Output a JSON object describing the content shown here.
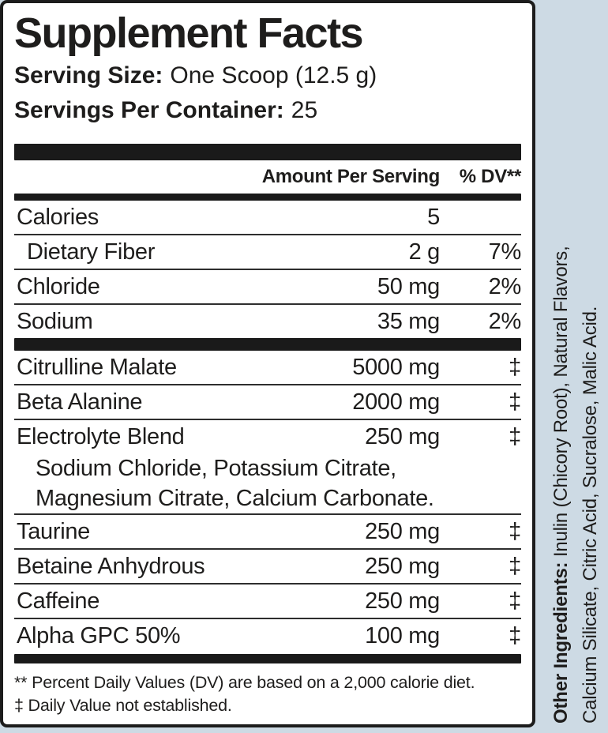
{
  "colors": {
    "page_background": "#cddae4",
    "panel_background": "#ffffff",
    "panel_border": "#1c1c1c",
    "bar_color": "#1a1a1a",
    "text_color": "#1e1d1c"
  },
  "header": {
    "title": "Supplement Facts",
    "serving_size_label": "Serving Size:",
    "serving_size_value": "One Scoop (12.5 g)",
    "servings_label": "Servings Per Container:",
    "servings_value": "25"
  },
  "table": {
    "col_amount": "Amount Per Serving",
    "col_dv": "% DV**",
    "rows": [
      {
        "name": "Calories",
        "amount": "5",
        "dv": ""
      },
      {
        "name": "Dietary Fiber",
        "amount": "2 g",
        "dv": "7%"
      },
      {
        "name": "Chloride",
        "amount": "50 mg",
        "dv": "2%"
      },
      {
        "name": "Sodium",
        "amount": "35 mg",
        "dv": "2%"
      },
      {
        "name": "Citrulline Malate",
        "amount": "5000 mg",
        "dv": "‡"
      },
      {
        "name": "Beta Alanine",
        "amount": "2000 mg",
        "dv": "‡"
      },
      {
        "name": "Electrolyte Blend",
        "amount": "250 mg",
        "dv": "‡"
      },
      {
        "name": "Taurine",
        "amount": "250 mg",
        "dv": "‡"
      },
      {
        "name": "Betaine Anhydrous",
        "amount": "250 mg",
        "dv": "‡"
      },
      {
        "name": "Caffeine",
        "amount": "250 mg",
        "dv": "‡"
      },
      {
        "name": "Alpha GPC 50%",
        "amount": "100 mg",
        "dv": "‡"
      }
    ],
    "electrolyte_blend_sublines": [
      "Sodium Chloride, Potassium Citrate,",
      "Magnesium Citrate, Calcium Carbonate."
    ]
  },
  "footnotes": {
    "line1": "** Percent Daily Values (DV) are based on a 2,000 calorie diet.",
    "line2": "‡ Daily Value not established."
  },
  "other_ingredients": {
    "label": "Other Ingredients:",
    "line1_rest": " Inulin (Chicory Root), Natural Flavors,",
    "line2": "Calcium Silicate, Citric Acid, Sucralose, Malic Acid."
  }
}
